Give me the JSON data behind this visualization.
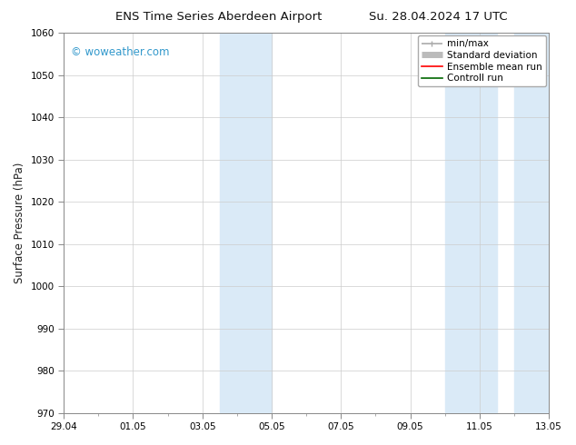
{
  "title": "ENS Time Series Aberdeen Airport",
  "title_right": "Su. 28.04.2024 17 UTC",
  "ylabel": "Surface Pressure (hPa)",
  "ylim": [
    970,
    1060
  ],
  "yticks": [
    970,
    980,
    990,
    1000,
    1010,
    1020,
    1030,
    1040,
    1050,
    1060
  ],
  "xtick_labels": [
    "29.04",
    "01.05",
    "03.05",
    "05.05",
    "07.05",
    "09.05",
    "11.05",
    "13.05"
  ],
  "xtick_positions": [
    0,
    2,
    4,
    6,
    8,
    10,
    12,
    14
  ],
  "xlim": [
    0,
    14
  ],
  "shaded_bands": [
    {
      "x_start": 4.5,
      "x_end": 6.0
    },
    {
      "x_start": 11.0,
      "x_end": 12.5
    },
    {
      "x_start": 13.0,
      "x_end": 14.0
    }
  ],
  "shaded_color": "#daeaf7",
  "legend_items": [
    {
      "label": "min/max",
      "color": "#aaaaaa",
      "lw": 1.2
    },
    {
      "label": "Standard deviation",
      "color": "#bbbbbb",
      "lw": 5
    },
    {
      "label": "Ensemble mean run",
      "color": "#ff0000",
      "lw": 1.2
    },
    {
      "label": "Controll run",
      "color": "#006600",
      "lw": 1.2
    }
  ],
  "watermark": "© woweather.com",
  "watermark_color": "#3399cc",
  "background_color": "#ffffff",
  "grid_color": "#cccccc",
  "tick_label_fontsize": 7.5,
  "title_fontsize": 9.5,
  "ylabel_fontsize": 8.5,
  "legend_fontsize": 7.5,
  "watermark_fontsize": 8.5
}
